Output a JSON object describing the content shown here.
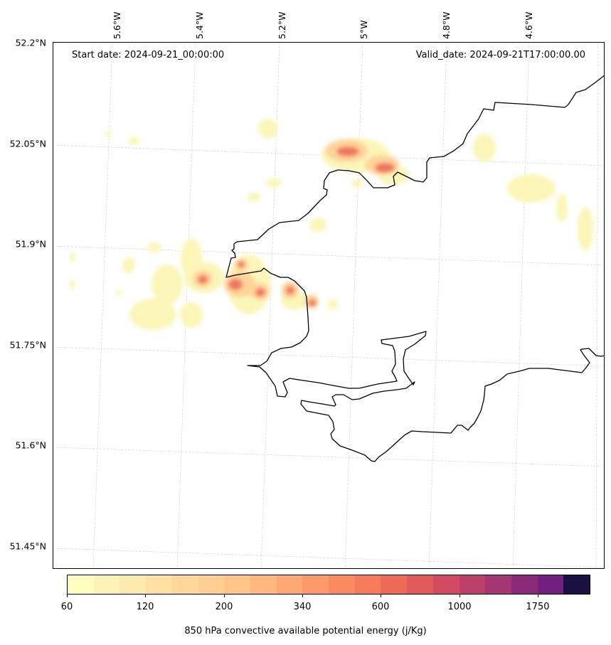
{
  "header": {
    "start_date": "Start date: 2024-09-21_00:00:00",
    "valid_date": "Valid_date: 2024-09-21T17:00:00.00"
  },
  "latitude_labels": [
    "52.2°N",
    "52.05°N",
    "51.9°N",
    "51.75°N",
    "51.6°N",
    "51.45°N"
  ],
  "longitude_labels": [
    "5.6°W",
    "5.4°W",
    "5.2°W",
    "5°W",
    "4.8°W",
    "4.6°W"
  ],
  "colorbar": {
    "label": "850 hPa convective available potential energy (j/Kg)",
    "tick_labels": [
      "60",
      "120",
      "200",
      "340",
      "600",
      "1000",
      "1750"
    ],
    "levels": 20,
    "colors": [
      "#fcfdbf",
      "#fbf4b6",
      "#fbebad",
      "#fde2a4",
      "#fed89a",
      "#fecf92",
      "#fec488",
      "#feb77e",
      "#fea874",
      "#fd9a6a",
      "#fa8a60",
      "#f57b5a",
      "#ee6a56",
      "#e35a5a",
      "#d24b60",
      "#bc3f6a",
      "#a43673",
      "#8b2b77",
      "#711f81",
      "#1a1042"
    ]
  },
  "map": {
    "coastline_color": "#000000",
    "grid_color": "#cccccc"
  }
}
